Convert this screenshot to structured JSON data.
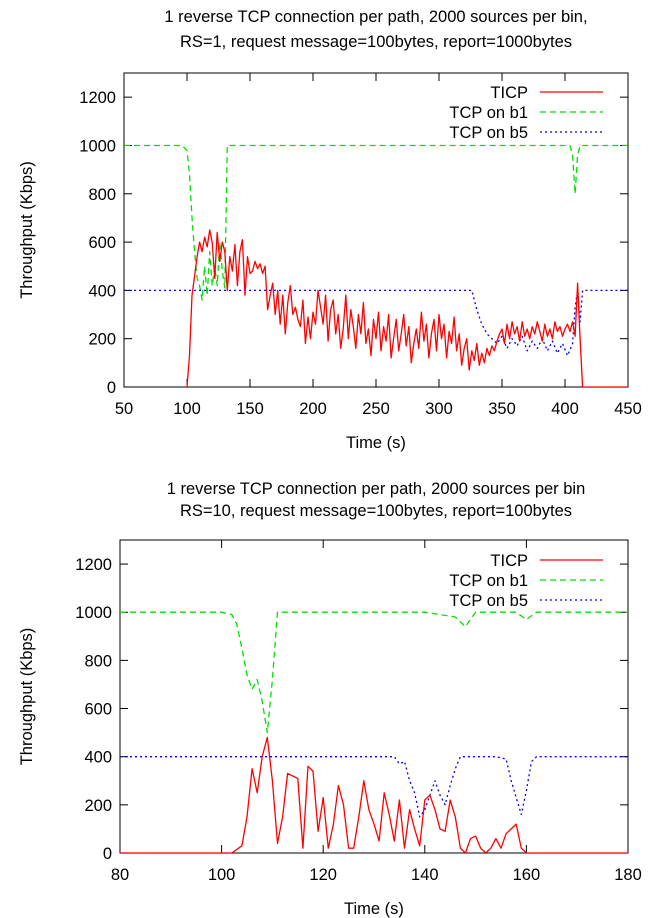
{
  "chart_data": [
    {
      "type": "line",
      "title": "1 reverse TCP connection per path, 2000 sources per bin,",
      "subtitle": "RS=1, request message=100bytes, report=1000bytes",
      "xlabel": "Time (s)",
      "ylabel": "Throughput (Kbps)",
      "xlim": [
        50,
        450
      ],
      "ylim": [
        0,
        1300
      ],
      "xticks": [
        50,
        100,
        150,
        200,
        250,
        300,
        350,
        400,
        450
      ],
      "yticks": [
        0,
        200,
        400,
        600,
        800,
        1000,
        1200
      ],
      "grid": false,
      "legend_position": "top-right",
      "series": [
        {
          "name": "TICP",
          "color": "#ff0000",
          "dash": "solid",
          "x": [
            100,
            102,
            104,
            106,
            108,
            110,
            112,
            114,
            116,
            118,
            120,
            122,
            124,
            126,
            128,
            130,
            132,
            134,
            136,
            138,
            140,
            142,
            144,
            146,
            148,
            150,
            152,
            154,
            156,
            158,
            160,
            162,
            164,
            166,
            168,
            170,
            172,
            174,
            176,
            178,
            180,
            182,
            184,
            186,
            188,
            190,
            192,
            194,
            196,
            198,
            200,
            202,
            204,
            206,
            208,
            210,
            212,
            214,
            216,
            218,
            220,
            222,
            224,
            226,
            228,
            230,
            232,
            234,
            236,
            238,
            240,
            242,
            244,
            246,
            248,
            250,
            252,
            254,
            256,
            258,
            260,
            262,
            264,
            266,
            268,
            270,
            272,
            274,
            276,
            278,
            280,
            282,
            284,
            286,
            288,
            290,
            292,
            294,
            296,
            298,
            300,
            302,
            304,
            306,
            308,
            310,
            312,
            314,
            316,
            318,
            320,
            322,
            324,
            326,
            328,
            330,
            332,
            334,
            336,
            338,
            340,
            342,
            344,
            346,
            348,
            350,
            352,
            354,
            356,
            358,
            360,
            362,
            364,
            366,
            368,
            370,
            372,
            374,
            376,
            378,
            380,
            382,
            384,
            386,
            388,
            390,
            392,
            394,
            396,
            398,
            400,
            402,
            404,
            406,
            408,
            410,
            412,
            414,
            416,
            418,
            420,
            430,
            440,
            450
          ],
          "y": [
            0,
            130,
            380,
            460,
            540,
            600,
            560,
            620,
            580,
            650,
            600,
            450,
            640,
            520,
            600,
            560,
            400,
            540,
            480,
            590,
            420,
            560,
            610,
            380,
            540,
            470,
            480,
            520,
            490,
            510,
            470,
            500,
            320,
            380,
            430,
            300,
            400,
            260,
            380,
            220,
            350,
            420,
            300,
            330,
            280,
            250,
            360,
            180,
            290,
            200,
            310,
            260,
            400,
            330,
            260,
            380,
            190,
            320,
            360,
            220,
            300,
            160,
            240,
            380,
            200,
            320,
            250,
            160,
            300,
            220,
            350,
            180,
            240,
            130,
            280,
            200,
            310,
            150,
            250,
            190,
            300,
            120,
            200,
            280,
            150,
            220,
            300,
            170,
            250,
            100,
            180,
            240,
            160,
            310,
            190,
            260,
            120,
            220,
            280,
            150,
            300,
            200,
            260,
            120,
            230,
            180,
            290,
            150,
            220,
            90,
            160,
            200,
            70,
            150,
            110,
            180,
            90,
            140,
            100,
            160,
            130,
            170,
            150,
            190,
            220,
            240,
            180,
            260,
            200,
            270,
            220,
            250,
            190,
            270,
            210,
            240,
            200,
            250,
            220,
            270,
            230,
            190,
            260,
            210,
            240,
            200,
            270,
            230,
            250,
            210,
            240,
            260,
            230,
            270,
            210,
            430,
            200,
            0,
            0,
            0,
            0,
            0,
            0,
            0
          ]
        },
        {
          "name": "TCP on b1",
          "color": "#00e000",
          "dash": "6,4",
          "x": [
            50,
            96,
            100,
            102,
            104,
            106,
            108,
            110,
            112,
            114,
            116,
            118,
            120,
            122,
            124,
            126,
            128,
            130,
            132,
            134,
            140,
            200,
            300,
            400,
            404,
            406,
            408,
            410,
            412,
            450
          ],
          "y": [
            1000,
            1000,
            980,
            880,
            700,
            560,
            450,
            420,
            360,
            500,
            380,
            560,
            420,
            500,
            420,
            600,
            480,
            410,
            1000,
            1000,
            1000,
            1000,
            1000,
            1000,
            1000,
            960,
            800,
            960,
            1000,
            1000
          ]
        },
        {
          "name": "TCP on b5",
          "color": "#0000ff",
          "dash": "2,3",
          "x": [
            50,
            100,
            150,
            200,
            250,
            300,
            326,
            330,
            334,
            338,
            342,
            346,
            350,
            354,
            358,
            362,
            366,
            370,
            374,
            378,
            382,
            386,
            390,
            394,
            398,
            402,
            406,
            408,
            410,
            412,
            414,
            416,
            420,
            450
          ],
          "y": [
            400,
            400,
            400,
            400,
            400,
            400,
            400,
            320,
            260,
            220,
            200,
            180,
            210,
            160,
            200,
            170,
            210,
            150,
            190,
            160,
            200,
            150,
            190,
            140,
            180,
            130,
            180,
            330,
            400,
            270,
            400,
            400,
            400,
            400
          ]
        }
      ]
    },
    {
      "type": "line",
      "title": "1 reverse TCP connection per path, 2000 sources per bin",
      "subtitle": "RS=10, request message=100bytes, report=100bytes",
      "xlabel": "Time (s)",
      "ylabel": "Throughput (Kbps)",
      "xlim": [
        80,
        180
      ],
      "ylim": [
        0,
        1300
      ],
      "xticks": [
        80,
        100,
        120,
        140,
        160,
        180
      ],
      "yticks": [
        0,
        200,
        400,
        600,
        800,
        1000,
        1200
      ],
      "grid": false,
      "legend_position": "top-right",
      "series": [
        {
          "name": "TICP",
          "color": "#ff0000",
          "dash": "solid",
          "x": [
            80,
            102,
            104,
            105,
            106,
            107,
            108,
            109,
            110,
            111,
            112,
            113,
            115,
            116,
            117,
            118,
            119,
            120,
            121,
            122,
            123,
            124,
            125,
            126,
            127,
            128,
            129,
            130,
            131,
            132,
            133,
            134,
            135,
            136,
            137,
            138,
            139,
            140,
            141,
            142,
            143,
            144,
            145,
            146,
            147,
            148,
            149,
            150,
            151,
            152,
            153,
            154,
            155,
            156,
            157,
            158,
            159,
            160,
            162,
            170,
            180
          ],
          "y": [
            0,
            0,
            30,
            150,
            350,
            250,
            400,
            480,
            300,
            40,
            150,
            330,
            310,
            20,
            360,
            340,
            90,
            230,
            20,
            120,
            280,
            200,
            20,
            20,
            150,
            300,
            180,
            120,
            50,
            250,
            160,
            50,
            220,
            20,
            180,
            100,
            30,
            220,
            240,
            180,
            100,
            90,
            220,
            150,
            20,
            0,
            60,
            70,
            20,
            0,
            20,
            60,
            20,
            80,
            100,
            120,
            20,
            0,
            0,
            0,
            0
          ]
        },
        {
          "name": "TCP on b1",
          "color": "#00e000",
          "dash": "6,4",
          "x": [
            80,
            100,
            102,
            103,
            104,
            105,
            106,
            107,
            108,
            109,
            110,
            111,
            112,
            120,
            140,
            146,
            148,
            150,
            152,
            158,
            160,
            162,
            170,
            180
          ],
          "y": [
            1000,
            1000,
            990,
            950,
            850,
            740,
            680,
            720,
            630,
            500,
            720,
            1000,
            1000,
            1000,
            1000,
            980,
            940,
            1000,
            1000,
            1000,
            970,
            1000,
            1000,
            1000
          ],
          "_note": ""
        },
        {
          "name": "TCP on b5",
          "color": "#0000ff",
          "dash": "2,3",
          "x": [
            80,
            100,
            120,
            130,
            134,
            135,
            136,
            137,
            138,
            139,
            140,
            141,
            142,
            143,
            144,
            145,
            146,
            147,
            148,
            150,
            154,
            156,
            157,
            158,
            159,
            160,
            161,
            162,
            170,
            180
          ],
          "y": [
            400,
            400,
            400,
            400,
            400,
            370,
            380,
            300,
            250,
            150,
            180,
            240,
            300,
            240,
            200,
            280,
            350,
            400,
            400,
            400,
            400,
            390,
            300,
            230,
            160,
            260,
            380,
            400,
            400,
            400
          ]
        }
      ]
    }
  ]
}
